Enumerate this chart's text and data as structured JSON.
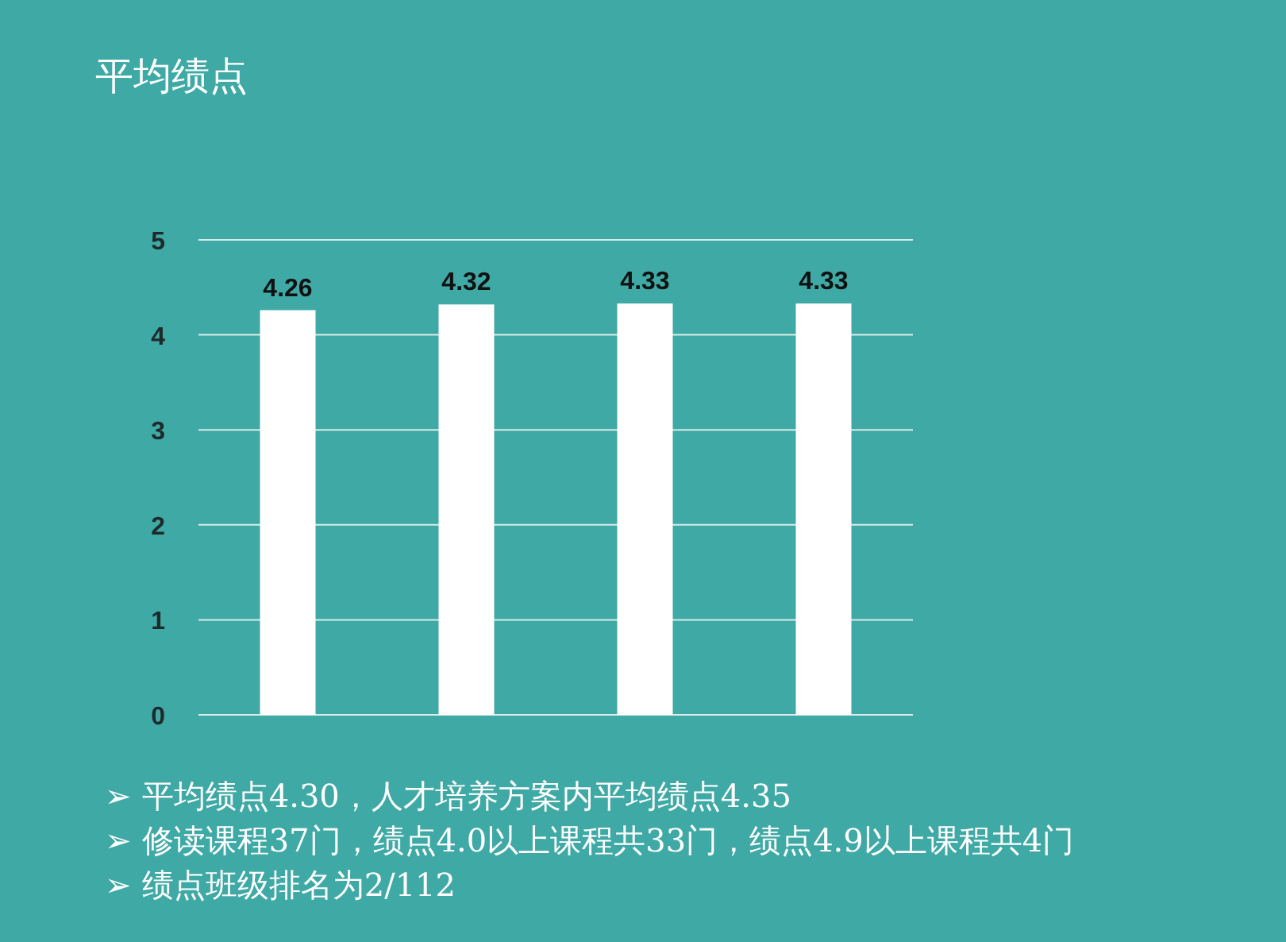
{
  "chart_data": {
    "type": "bar",
    "title": "平均绩点",
    "categories": [
      null,
      null,
      null,
      null
    ],
    "values": [
      4.26,
      4.32,
      4.33,
      4.33
    ],
    "color": "#ffffff",
    "ylim": [
      0,
      5
    ],
    "yticks": [
      0,
      1,
      2,
      3,
      4,
      5
    ],
    "grid": "y",
    "data_labels": true,
    "annotations": [
      "➢ 平均绩点4.30，人才培养方案内平均绩点4.35",
      "➢ 修读课程37门，绩点4.0以上课程共33门，绩点4.9以上课程共4门",
      "➢ 绩点班级排名为2/112"
    ]
  }
}
